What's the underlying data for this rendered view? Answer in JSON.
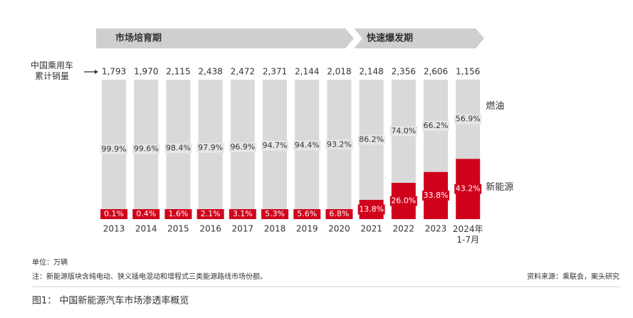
{
  "chart_data": {
    "type": "bar",
    "stacked": true,
    "phases": [
      "市场培育期",
      "快速爆发期"
    ],
    "totals_label": "中国乘用车\n累计销量",
    "categories": [
      "2013",
      "2014",
      "2015",
      "2016",
      "2017",
      "2018",
      "2019",
      "2020",
      "2021",
      "2022",
      "2023",
      "2024年\n1-7月"
    ],
    "totals": {
      "values": [
        1793,
        1970,
        2115,
        2438,
        2472,
        2371,
        2144,
        2018,
        2148,
        2356,
        2606,
        1156
      ],
      "value_labels": [
        "1,793",
        "1,970",
        "2,115",
        "2,438",
        "2,472",
        "2,371",
        "2,144",
        "2,018",
        "2,148",
        "2,356",
        "2,606",
        "1,156"
      ]
    },
    "series": [
      {
        "name": "新能源",
        "color": "#d0021b",
        "values": [
          0.1,
          0.4,
          1.6,
          2.1,
          3.1,
          5.3,
          5.6,
          6.8,
          13.8,
          26.0,
          33.8,
          43.2
        ],
        "value_labels": [
          "0.1%",
          "0.4%",
          "1.6%",
          "2.1%",
          "3.1%",
          "5.3%",
          "5.6%",
          "6.8%",
          "13.8%",
          "26.0%",
          "33.8%",
          "43.2%"
        ]
      },
      {
        "name": "燃油",
        "color": "#d9d9d9",
        "values": [
          99.9,
          99.6,
          98.4,
          97.9,
          96.9,
          94.7,
          94.4,
          93.2,
          86.2,
          74.0,
          66.2,
          56.9
        ],
        "value_labels": [
          "99.9%",
          "99.6%",
          "98.4%",
          "97.9%",
          "96.9%",
          "94.7%",
          "94.4%",
          "93.2%",
          "86.2%",
          "74.0%",
          "66.2%",
          "56.9%"
        ]
      }
    ],
    "ylim": [
      0,
      100
    ],
    "unit": "单位：万辆",
    "note": "注：新能源版块含纯电动、狭义插电混动和增程式三类能源路线市场份额。",
    "source": "资料来源：乘联会，案头研究",
    "caption": "图1： 中国新能源汽车市场渗透率概览"
  }
}
